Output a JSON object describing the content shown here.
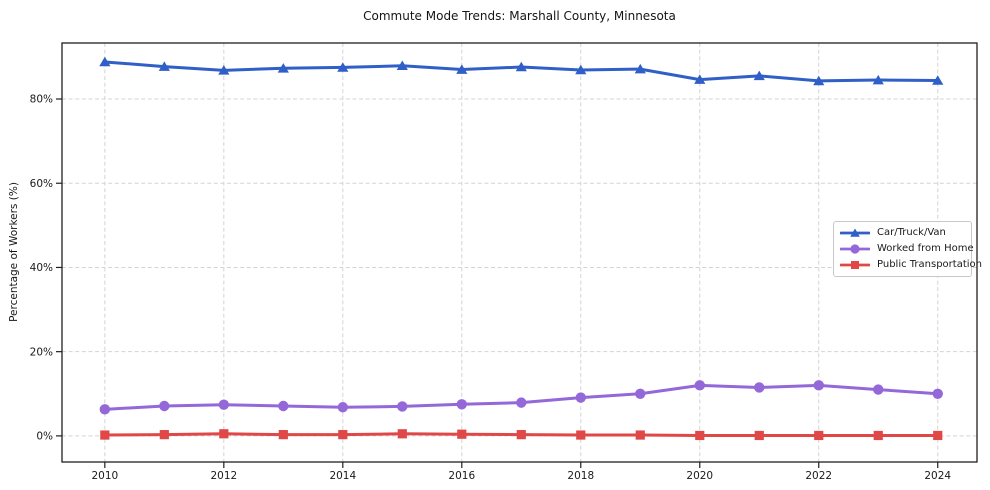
{
  "chart_data": {
    "type": "line",
    "title": "Commute Mode Trends: Marshall County, Minnesota",
    "xlabel": "",
    "ylabel": "Percentage of Workers (%)",
    "x": [
      2010,
      2011,
      2012,
      2013,
      2014,
      2015,
      2016,
      2017,
      2018,
      2019,
      2020,
      2021,
      2022,
      2023,
      2024
    ],
    "x_ticks": [
      2010,
      2012,
      2014,
      2016,
      2018,
      2020,
      2022,
      2024
    ],
    "x_tick_labels": [
      "2010",
      "2012",
      "2014",
      "2016",
      "2018",
      "2020",
      "2022",
      "2024"
    ],
    "y_ticks": [
      0,
      20,
      40,
      60,
      80
    ],
    "y_tick_labels": [
      "0%",
      "20%",
      "40%",
      "60%",
      "80%"
    ],
    "xlim": [
      2009.28,
      2024.66
    ],
    "ylim": [
      -6.2,
      93.3
    ],
    "grid": true,
    "grid_style": "dashed",
    "legend_position": "center-right",
    "series": [
      {
        "name": "Car/Truck/Van",
        "marker": "triangle",
        "color": "#2f5fc7",
        "values": [
          88.8,
          87.7,
          86.8,
          87.3,
          87.5,
          87.9,
          87.0,
          87.6,
          86.9,
          87.1,
          84.6,
          85.5,
          84.3,
          84.5,
          84.4
        ]
      },
      {
        "name": "Worked from Home",
        "marker": "circle",
        "color": "#9468d8",
        "values": [
          6.3,
          7.1,
          7.4,
          7.1,
          6.8,
          7.0,
          7.5,
          7.9,
          9.1,
          10.0,
          12.0,
          11.5,
          12.0,
          11.0,
          10.0
        ]
      },
      {
        "name": "Public Transportation",
        "marker": "square",
        "color": "#e04747",
        "values": [
          0.2,
          0.3,
          0.5,
          0.3,
          0.3,
          0.5,
          0.4,
          0.3,
          0.2,
          0.2,
          0.1,
          0.1,
          0.1,
          0.1,
          0.1
        ]
      }
    ],
    "colors": {
      "grid": "#d4d4d4",
      "spine": "#1f1f1f",
      "tick_text": "#1a1a1a",
      "background": "#ffffff"
    }
  }
}
